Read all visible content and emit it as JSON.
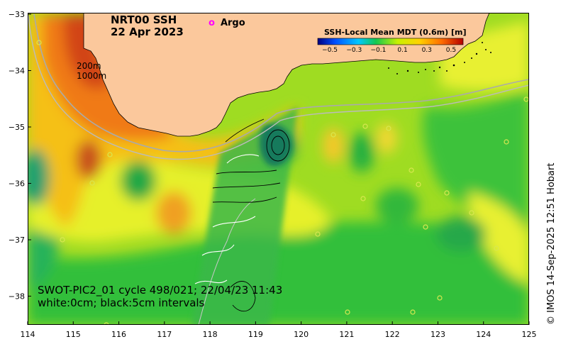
{
  "title": {
    "product": "NRT00 SSH",
    "date": "22 Apr 2023"
  },
  "isobaths": {
    "shallow": "200m",
    "deep": "1000m"
  },
  "legend": {
    "argo_label": "Argo"
  },
  "colorbar": {
    "title": "SSH-Local Mean MDT (0.6m) [m]",
    "tick_labels": [
      "−0.5",
      "−0.3",
      "−0.1",
      "0.1",
      "0.3",
      "0.5"
    ],
    "range": [
      -0.6,
      0.6
    ]
  },
  "axes": {
    "x_ticks": [
      "114",
      "115",
      "116",
      "117",
      "118",
      "119",
      "120",
      "121",
      "122",
      "123",
      "124",
      "125"
    ],
    "y_ticks": [
      "−33",
      "−34",
      "−35",
      "−36",
      "−37",
      "−38"
    ]
  },
  "footer": {
    "line1": "SWOT-PIC2_01 cycle 498/021; 22/04/23 11:43",
    "line2": "white:0cm; black:5cm intervals"
  },
  "credit": "© IMOS 14-Sep-2025 12:51 Hobart",
  "colors": {
    "land": "#fbc89c",
    "argo": "#ff00ff",
    "sea_green": "#2fbe3a",
    "sea_yellow": "#f0ee2a"
  }
}
